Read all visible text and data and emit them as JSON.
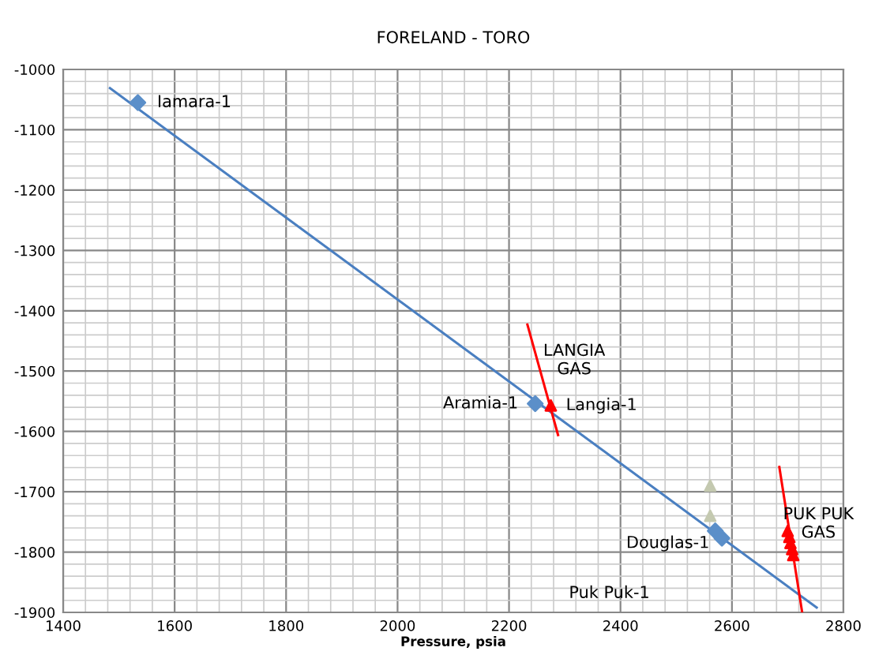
{
  "chart_data": {
    "type": "scatter",
    "title": "FORELAND - TORO",
    "xlabel": "Pressure, psia",
    "xlim": [
      1400,
      2800
    ],
    "xticks": [
      1400,
      1600,
      1800,
      2000,
      2200,
      2400,
      2600,
      2800
    ],
    "ylim": [
      -1900,
      -1000
    ],
    "yticks": [
      -1900,
      -1800,
      -1700,
      -1600,
      -1500,
      -1400,
      -1300,
      -1200,
      -1100,
      -1000
    ],
    "grid": true,
    "legend": false,
    "series": [
      {
        "type": "line",
        "color": "#4a7fc1",
        "x": [
          1484,
          2752
        ],
        "values": [
          -1031,
          -1892
        ],
        "marker": "none"
      },
      {
        "type": "line",
        "color": "#ff0000",
        "x": [
          2233,
          2288
        ],
        "values": [
          -1423,
          -1606
        ],
        "marker": "none"
      },
      {
        "type": "line",
        "color": "#ff0000",
        "x": [
          2685,
          2726
        ],
        "values": [
          -1659,
          -1900
        ],
        "marker": "none"
      },
      {
        "color": "#5b8fc9",
        "marker": "diamond",
        "x": [
          1534,
          2247,
          2570,
          2582
        ],
        "values": [
          -1055,
          -1554,
          -1765,
          -1777
        ]
      },
      {
        "color": "#c4c9b0",
        "marker": "triangle",
        "x": [
          2561,
          2561
        ],
        "values": [
          -1690,
          -1740
        ]
      },
      {
        "color": "#ff0000",
        "marker": "triangle",
        "x": [
          2275,
          2700,
          2703,
          2705,
          2708,
          2710
        ],
        "values": [
          -1557,
          -1765,
          -1775,
          -1785,
          -1795,
          -1805
        ]
      }
    ],
    "annotations": [
      "Iamara-1",
      "Aramia-1",
      "Langia-1",
      "LANGIA\nGAS",
      "Douglas-1",
      "PUK PUK\nGAS",
      "Puk Puk-1"
    ]
  }
}
